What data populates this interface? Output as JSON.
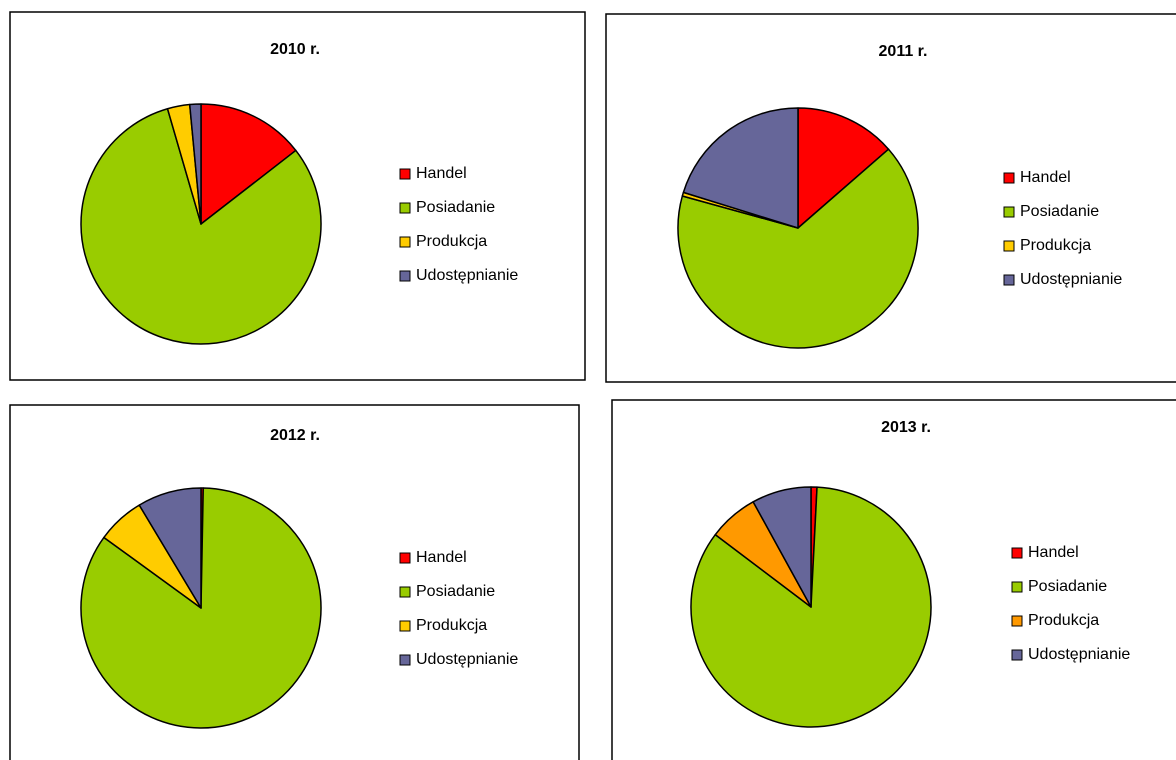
{
  "chart_data": [
    {
      "type": "pie",
      "title": "2010 r.",
      "categories": [
        "Handel",
        "Posiadanie",
        "Produkcja",
        "Udostępnianie"
      ],
      "values": [
        14.5,
        81,
        3,
        1.5
      ],
      "colors": [
        "#ff0000",
        "#99cc00",
        "#ffcc00",
        "#666699"
      ]
    },
    {
      "type": "pie",
      "title": "2011 r.",
      "categories": [
        "Handel",
        "Posiadanie",
        "Produkcja",
        "Udostępnianie"
      ],
      "values": [
        13.6,
        65.7,
        0.5,
        20.2
      ],
      "colors": [
        "#ff0000",
        "#99cc00",
        "#ffcc00",
        "#666699"
      ]
    },
    {
      "type": "pie",
      "title": "2012 r.",
      "categories": [
        "Handel",
        "Posiadanie",
        "Produkcja",
        "Udostępnianie"
      ],
      "values": [
        0.3,
        84.7,
        6.4,
        8.6
      ],
      "colors": [
        "#ff0000",
        "#99cc00",
        "#ffcc00",
        "#666699"
      ]
    },
    {
      "type": "pie",
      "title": "2013 r.",
      "categories": [
        "Handel",
        "Posiadanie",
        "Produkcja",
        "Udostępnianie"
      ],
      "values": [
        0.8,
        84.5,
        6.7,
        8
      ],
      "colors": [
        "#ff0000",
        "#99cc00",
        "#ff9900",
        "#666699"
      ]
    }
  ]
}
